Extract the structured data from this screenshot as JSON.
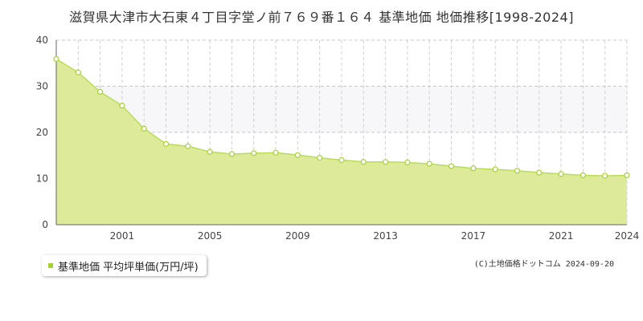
{
  "chart_data": {
    "type": "area",
    "title": "滋賀県大津市大石東４丁目字堂ノ前７６９番１６４ 基準地価 地価推移[1998-2024]",
    "xlabel": "",
    "ylabel": "",
    "x": [
      1998,
      1999,
      2000,
      2001,
      2002,
      2003,
      2004,
      2005,
      2006,
      2007,
      2008,
      2009,
      2010,
      2011,
      2012,
      2013,
      2014,
      2015,
      2016,
      2017,
      2018,
      2019,
      2020,
      2021,
      2022,
      2023,
      2024
    ],
    "series": [
      {
        "name": "基準地価 平均坪単価(万円/坪)",
        "values": [
          35.9,
          33.0,
          28.8,
          25.8,
          20.8,
          17.5,
          17.0,
          15.8,
          15.3,
          15.5,
          15.6,
          15.1,
          14.5,
          14.0,
          13.6,
          13.6,
          13.5,
          13.2,
          12.7,
          12.2,
          12.0,
          11.7,
          11.3,
          11.0,
          10.7,
          10.6,
          10.7
        ]
      }
    ],
    "xlim": [
      1998,
      2024
    ],
    "ylim": [
      0,
      40
    ],
    "yticks": [
      "0",
      "10",
      "20",
      "30",
      "40"
    ],
    "xticks": [
      "2001",
      "2005",
      "2009",
      "2013",
      "2017",
      "2021",
      "2024"
    ],
    "grid": true,
    "legend_position": "bottom-left",
    "colors": {
      "area_fill": "#dcea9a",
      "line": "#b9dc5a",
      "marker": "#a6cf3a",
      "band": "#f7f6f8"
    }
  },
  "legend": {
    "label": "基準地価 平均坪単価(万円/坪)"
  },
  "credit": "(C)土地価格ドットコム 2024-09-20"
}
